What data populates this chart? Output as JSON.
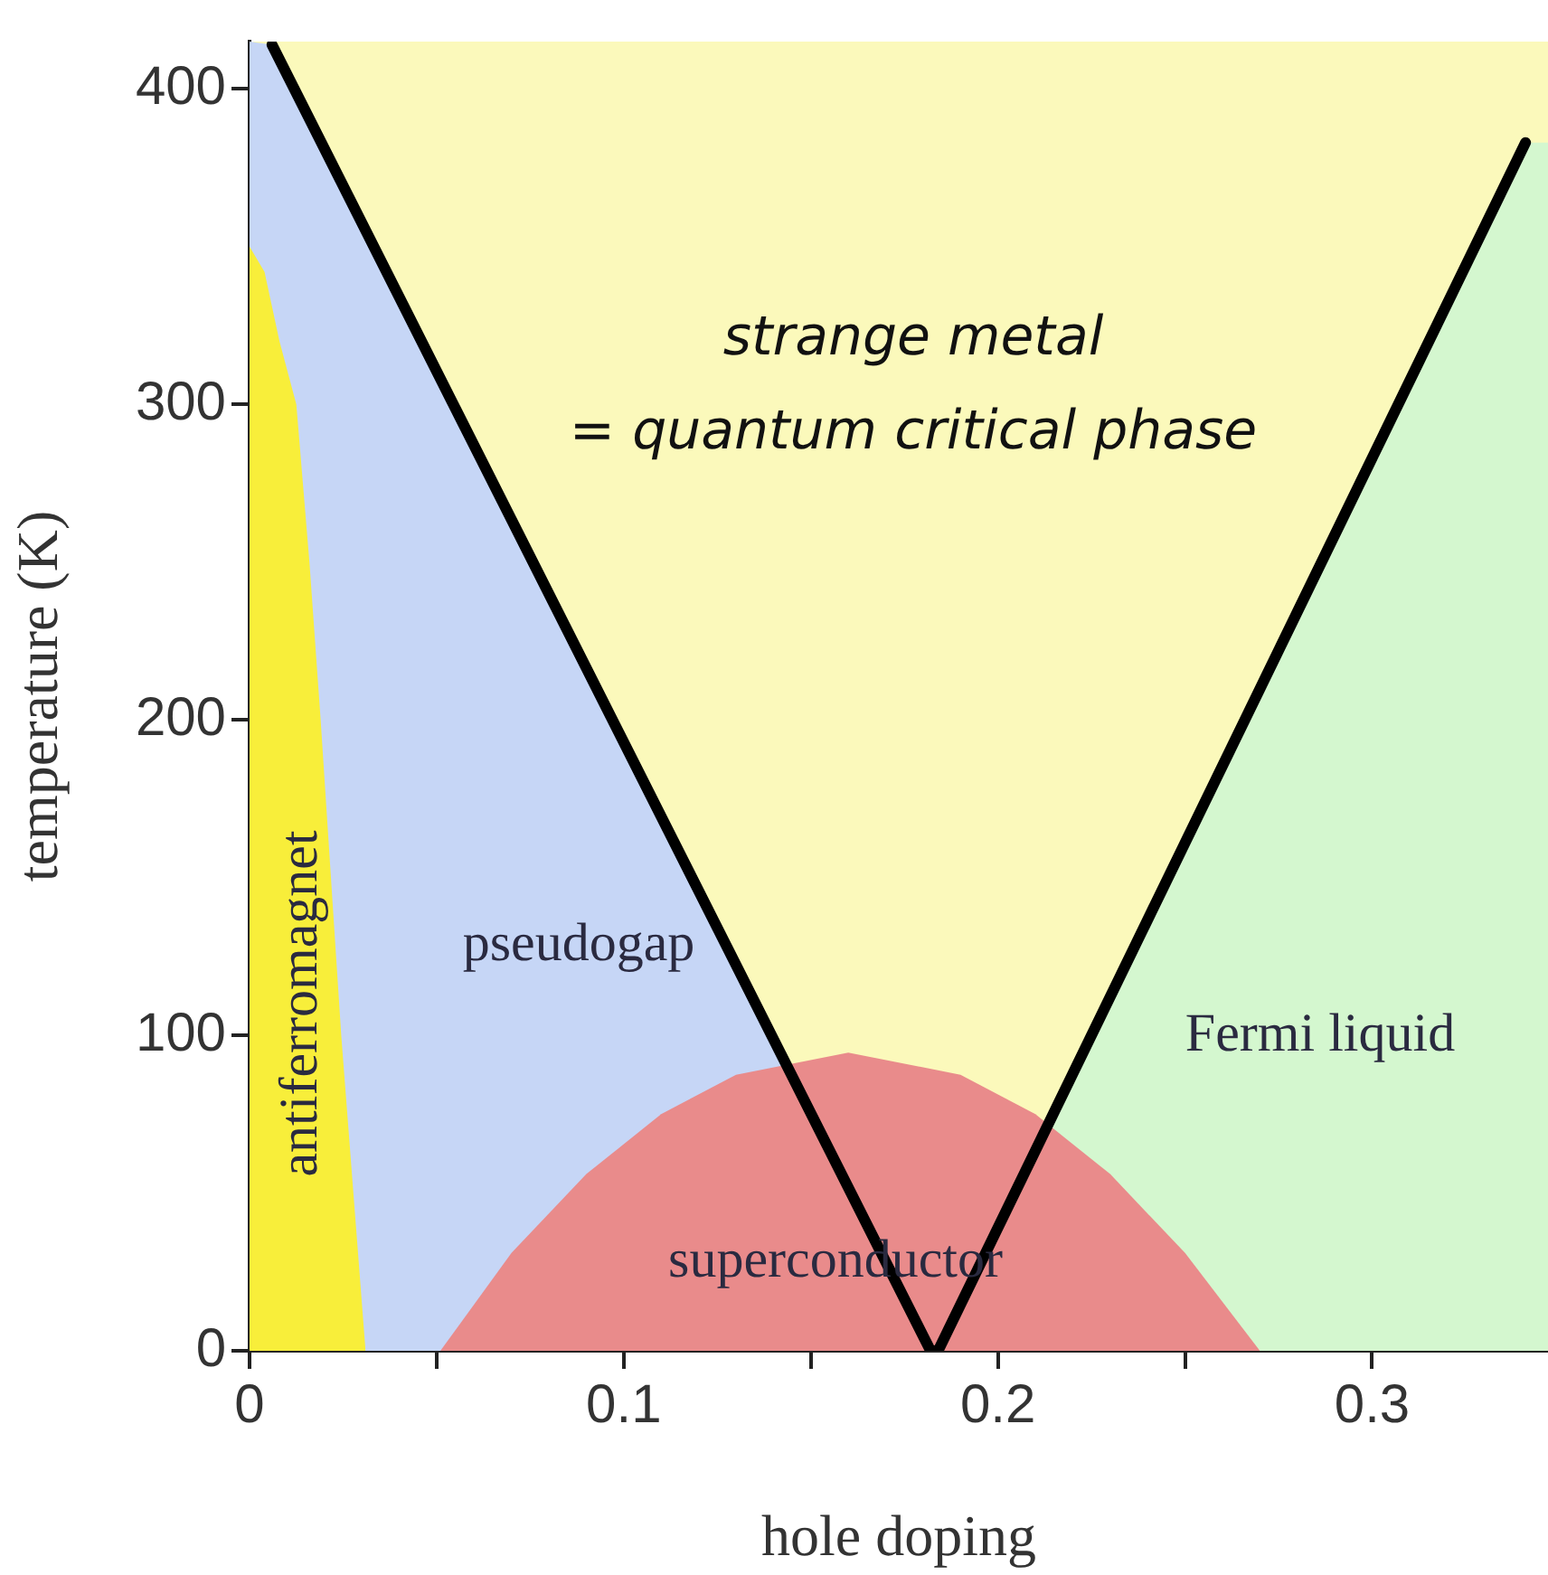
{
  "chart_data": {
    "type": "area",
    "xlabel": "hole doping",
    "ylabel": "temperature (K)",
    "xlim": [
      0,
      0.347
    ],
    "ylim": [
      0,
      415
    ],
    "xticks": [
      0,
      {
        "value": 0.05,
        "label": null
      },
      0.1,
      {
        "value": 0.15,
        "label": null
      },
      0.2,
      {
        "value": 0.25,
        "label": null
      },
      0.3
    ],
    "yticks": [
      0,
      100,
      200,
      300,
      400
    ],
    "grid": false,
    "legend": false,
    "series": [
      {
        "color": "#c6d6f6",
        "x": [
          0,
          0.006,
          0.182
        ],
        "values": [
          415,
          414,
          0
        ]
      },
      {
        "color": "#d4f7cf",
        "x": [
          0.184,
          0.341,
          0.347
        ],
        "values": [
          0,
          383,
          383
        ]
      },
      {
        "color": "#f8ee3a",
        "x": [
          0,
          0.004,
          0.008,
          0.0125,
          0.016,
          0.019,
          0.0245,
          0.031
        ],
        "values": [
          350,
          342,
          320,
          300,
          250,
          200,
          100,
          0
        ]
      },
      {
        "color": "#e98b8b",
        "x": [
          0.051,
          0.07,
          0.09,
          0.11,
          0.13,
          0.16,
          0.19,
          0.21,
          0.23,
          0.25,
          0.27
        ],
        "values": [
          0,
          31,
          56,
          75,
          87.5,
          94.5,
          87.5,
          75,
          56,
          31,
          0
        ]
      },
      {
        "type": "line",
        "color": "#000000",
        "x": [
          0.006,
          0.182,
          0.184,
          0.341
        ],
        "values": [
          414,
          0,
          0,
          383
        ]
      }
    ],
    "annotations": [
      "strange metal",
      "= quantum critical phase",
      "antiferromagnet",
      "pseudogap",
      "superconductor",
      "Fermi liquid"
    ]
  }
}
